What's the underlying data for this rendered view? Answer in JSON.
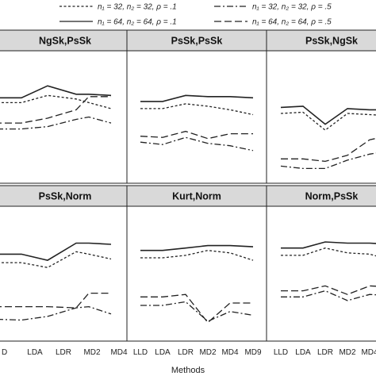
{
  "legend": [
    {
      "label": "n₁ = 32, n₂ = 32, ρ = .1",
      "dash": "3,2.5"
    },
    {
      "label": "n₁ = 32, n₂ = 32, ρ = .5",
      "dash": "8,3,2,3"
    },
    {
      "label": "n₁ = 64, n₂ = 64, ρ = .1",
      "dash": ""
    },
    {
      "label": "n₁ = 64, n₂ = 64, ρ = .5",
      "dash": "9,4"
    }
  ],
  "chart_data": {
    "type": "line",
    "xlabel": "Methods",
    "ylabel": "",
    "categories": [
      "LLD",
      "LDA",
      "LDR",
      "MD2",
      "MD4",
      "MD9"
    ],
    "panels": [
      {
        "title": "NgSk,PsSk",
        "series": [
          {
            "name": "n₁ = 32, n₂ = 32, ρ = .1",
            "values": [
              0.62,
              0.62,
              0.68,
              0.65,
              0.62,
              0.57
            ]
          },
          {
            "name": "n₁ = 32, n₂ = 32, ρ = .5",
            "values": [
              0.4,
              0.4,
              0.42,
              0.48,
              0.5,
              0.45
            ]
          },
          {
            "name": "n₁ = 64, n₂ = 64, ρ = .1",
            "values": [
              0.66,
              0.66,
              0.76,
              0.69,
              0.69,
              0.68
            ]
          },
          {
            "name": "n₁ = 64, n₂ = 64, ρ = .5",
            "values": [
              0.45,
              0.45,
              0.49,
              0.56,
              0.67,
              0.67
            ]
          }
        ]
      },
      {
        "title": "PsSk,PsSk",
        "series": [
          {
            "name": "n₁ = 32, n₂ = 32, ρ = .1",
            "values": [
              0.57,
              0.57,
              0.61,
              0.59,
              0.56,
              0.52
            ]
          },
          {
            "name": "n₁ = 32, n₂ = 32, ρ = .5",
            "values": [
              0.29,
              0.27,
              0.33,
              0.28,
              0.26,
              0.22
            ]
          },
          {
            "name": "n₁ = 64, n₂ = 64, ρ = .1",
            "values": [
              0.63,
              0.63,
              0.68,
              0.67,
              0.67,
              0.66
            ]
          },
          {
            "name": "n₁ = 64, n₂ = 64, ρ = .5",
            "values": [
              0.34,
              0.33,
              0.38,
              0.32,
              0.36,
              0.36
            ]
          }
        ]
      },
      {
        "title": "PsSk,NgSk",
        "series": [
          {
            "name": "n₁ = 32, n₂ = 32, ρ = .1",
            "values": [
              0.53,
              0.54,
              0.39,
              0.53,
              0.52,
              0.51
            ]
          },
          {
            "name": "n₁ = 32, n₂ = 32, ρ = .5",
            "values": [
              0.09,
              0.07,
              0.07,
              0.14,
              0.19,
              0.22
            ]
          },
          {
            "name": "n₁ = 64, n₂ = 64, ρ = .1",
            "values": [
              0.58,
              0.59,
              0.44,
              0.57,
              0.56,
              0.56
            ]
          },
          {
            "name": "n₁ = 64, n₂ = 64, ρ = .5",
            "values": [
              0.15,
              0.15,
              0.13,
              0.18,
              0.31,
              0.35
            ]
          }
        ]
      },
      {
        "title": "PsSk,Norm",
        "series": [
          {
            "name": "n₁ = 32, n₂ = 32, ρ = .1",
            "values": [
              0.59,
              0.59,
              0.55,
              0.68,
              0.66,
              0.62
            ]
          },
          {
            "name": "n₁ = 32, n₂ = 32, ρ = .5",
            "values": [
              0.13,
              0.12,
              0.15,
              0.22,
              0.23,
              0.17
            ]
          },
          {
            "name": "n₁ = 64, n₂ = 64, ρ = .1",
            "values": [
              0.66,
              0.66,
              0.61,
              0.75,
              0.75,
              0.74
            ]
          },
          {
            "name": "n₁ = 64, n₂ = 64, ρ = .5",
            "values": [
              0.23,
              0.23,
              0.23,
              0.22,
              0.34,
              0.34
            ]
          }
        ]
      },
      {
        "title": "Kurt,Norm",
        "series": [
          {
            "name": "n₁ = 32, n₂ = 32, ρ = .1",
            "values": [
              0.63,
              0.63,
              0.65,
              0.69,
              0.67,
              0.61
            ]
          },
          {
            "name": "n₁ = 32, n₂ = 32, ρ = .5",
            "values": [
              0.24,
              0.24,
              0.27,
              0.11,
              0.19,
              0.16
            ]
          },
          {
            "name": "n₁ = 64, n₂ = 64, ρ = .1",
            "values": [
              0.69,
              0.69,
              0.71,
              0.73,
              0.73,
              0.72
            ]
          },
          {
            "name": "n₁ = 64, n₂ = 64, ρ = .5",
            "values": [
              0.31,
              0.31,
              0.33,
              0.1,
              0.26,
              0.26
            ]
          }
        ]
      },
      {
        "title": "Norm,PsSk",
        "series": [
          {
            "name": "n₁ = 32, n₂ = 32, ρ = .1",
            "values": [
              0.65,
              0.65,
              0.71,
              0.67,
              0.66,
              0.61
            ]
          },
          {
            "name": "n₁ = 32, n₂ = 32, ρ = .5",
            "values": [
              0.31,
              0.31,
              0.36,
              0.28,
              0.33,
              0.32
            ]
          },
          {
            "name": "n₁ = 64, n₂ = 64, ρ = .1",
            "values": [
              0.71,
              0.71,
              0.76,
              0.75,
              0.75,
              0.74
            ]
          },
          {
            "name": "n₁ = 64, n₂ = 64, ρ = .5",
            "values": [
              0.36,
              0.36,
              0.4,
              0.33,
              0.4,
              0.39
            ]
          }
        ]
      }
    ]
  }
}
